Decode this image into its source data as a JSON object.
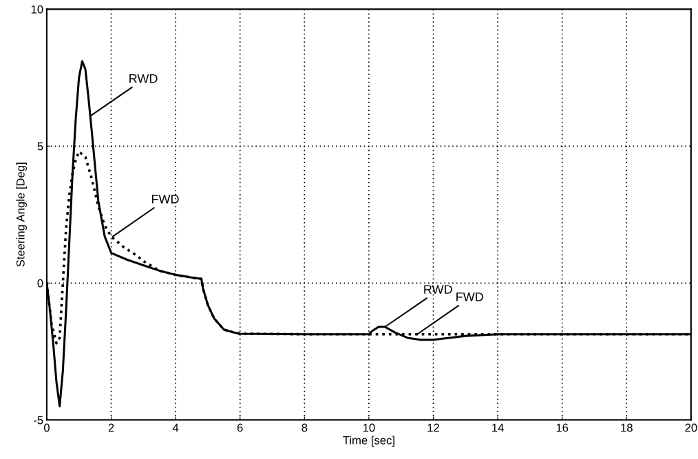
{
  "chart_data": {
    "type": "line",
    "xlabel": "Time [sec]",
    "ylabel": "Steering Angle [Deg]",
    "xlim": [
      0,
      20
    ],
    "xticks": [
      0,
      2,
      4,
      6,
      8,
      10,
      12,
      14,
      16,
      18,
      20
    ],
    "ylim": [
      -5,
      10
    ],
    "yticks": [
      -5,
      0,
      5,
      10
    ],
    "grid": true,
    "marker": "none",
    "series": [
      {
        "color": "#000000",
        "line_style": "solid",
        "x": [
          0,
          0.1,
          0.2,
          0.3,
          0.4,
          0.5,
          0.6,
          0.7,
          0.8,
          0.9,
          1.0,
          1.1,
          1.2,
          1.3,
          1.4,
          1.6,
          1.8,
          2.0,
          2.5,
          3,
          3.5,
          4,
          4.5,
          4.8,
          4.85,
          5.0,
          5.2,
          5.5,
          5.8,
          6,
          8,
          10,
          10.1,
          10.3,
          10.5,
          10.8,
          11.2,
          11.6,
          12,
          12.5,
          13,
          14,
          16,
          18,
          20
        ],
        "values": [
          0,
          -1.0,
          -2.2,
          -3.6,
          -4.5,
          -3.2,
          -1.0,
          1.5,
          4.0,
          6.0,
          7.5,
          8.1,
          7.8,
          6.7,
          5.5,
          3.0,
          1.7,
          1.1,
          0.85,
          0.65,
          0.45,
          0.3,
          0.2,
          0.15,
          -0.2,
          -0.8,
          -1.3,
          -1.7,
          -1.8,
          -1.85,
          -1.87,
          -1.87,
          -1.75,
          -1.6,
          -1.6,
          -1.8,
          -2.0,
          -2.07,
          -2.07,
          -2.0,
          -1.93,
          -1.87,
          -1.87,
          -1.87,
          -1.87
        ]
      },
      {
        "color": "#000000",
        "line_style": "dotted",
        "x": [
          0,
          0.15,
          0.3,
          0.4,
          0.5,
          0.6,
          0.7,
          0.8,
          0.9,
          1.0,
          1.2,
          1.4,
          1.6,
          1.8,
          2.0,
          2.4,
          2.8,
          3.0,
          3.5,
          4,
          4.5,
          4.8,
          4.85,
          5.0,
          5.2,
          5.5,
          5.8,
          6,
          8,
          10,
          12,
          14,
          16,
          18,
          20
        ],
        "values": [
          0,
          -1.5,
          -2.2,
          -2.0,
          0,
          2.0,
          3.2,
          4.0,
          4.5,
          4.8,
          4.6,
          3.8,
          2.8,
          2.1,
          1.7,
          1.3,
          1.0,
          0.8,
          0.45,
          0.3,
          0.2,
          0.15,
          -0.2,
          -0.8,
          -1.3,
          -1.7,
          -1.8,
          -1.85,
          -1.87,
          -1.87,
          -1.87,
          -1.87,
          -1.87,
          -1.87,
          -1.87
        ]
      }
    ],
    "annotations": [
      {
        "text": "RWD",
        "x": 1.35,
        "y": 6.1
      },
      {
        "text": "FWD",
        "x": 2.05,
        "y": 1.7
      },
      {
        "text": "RWD",
        "x": 10.5,
        "y": -1.6
      },
      {
        "text": "FWD",
        "x": 11.5,
        "y": -1.87
      }
    ]
  }
}
